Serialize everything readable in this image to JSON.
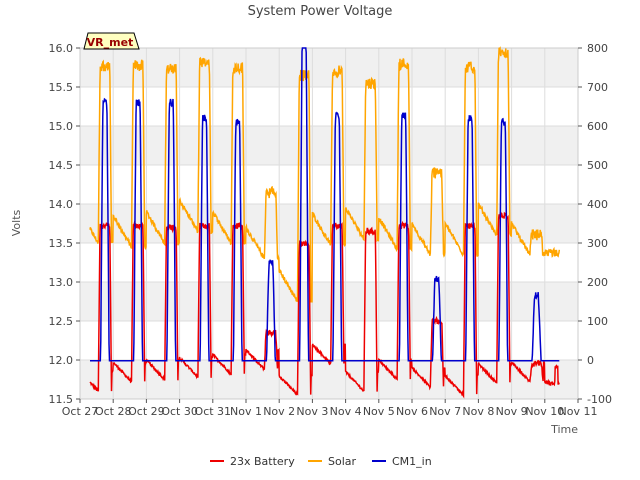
{
  "chart_data": {
    "type": "line",
    "title": "System Power Voltage",
    "xlabel": "Time",
    "ylabel": "Volts",
    "badge": "VR_met",
    "x_ticks": [
      "Oct 27",
      "Oct 28",
      "Oct 29",
      "Oct 30",
      "Oct 31",
      "Nov 1",
      "Nov 2",
      "Nov 3",
      "Nov 4",
      "Nov 5",
      "Nov 6",
      "Nov 7",
      "Nov 8",
      "Nov 9",
      "Nov 10",
      "Nov 11"
    ],
    "xlim": [
      0,
      15
    ],
    "ylim_left": [
      11.5,
      16.0
    ],
    "y_ticks_left": [
      "11.5",
      "12.0",
      "12.5",
      "13.0",
      "13.5",
      "14.0",
      "14.5",
      "15.0",
      "15.5",
      "16.0"
    ],
    "ylim_right": [
      -100,
      800
    ],
    "y_ticks_right": [
      "-100",
      "0",
      "100",
      "200",
      "300",
      "400",
      "500",
      "600",
      "700",
      "800"
    ],
    "colors": {
      "battery": "#ee0000",
      "solar": "#ffa500",
      "cm1": "#0000cc",
      "band": "#f0f0f0"
    },
    "legend": [
      "23x Battery",
      "Solar",
      "CM1_in"
    ],
    "series": [
      {
        "name": "23x Battery",
        "axis": "left",
        "color": "#ee0000",
        "base_start": 11.78,
        "base_end": 11.66,
        "peak_start": 13.72,
        "peak_end": 13.5,
        "x": [
          0.3,
          1.0,
          1.35,
          2.0,
          2.35,
          3.0,
          3.35,
          4.0,
          4.35,
          5.0,
          5.35,
          6.0,
          6.35,
          7.0,
          7.35,
          8.0,
          8.35,
          9.0,
          9.35,
          10.0,
          10.35,
          11.0,
          11.35,
          12.0,
          12.35,
          13.0,
          13.35,
          14.0,
          14.45
        ],
        "y": [
          11.78,
          13.72,
          11.72,
          13.72,
          11.75,
          13.7,
          11.78,
          13.72,
          11.82,
          13.72,
          11.88,
          12.35,
          11.55,
          13.5,
          11.95,
          13.72,
          11.6,
          13.65,
          11.75,
          13.72,
          11.65,
          12.5,
          11.55,
          13.72,
          11.7,
          13.85,
          11.72,
          11.95,
          11.62
        ],
        "summary": [
          {
            "x": 0.3,
            "y": 11.78
          },
          {
            "x": 1.0,
            "y": 13.72
          },
          {
            "x": 6.0,
            "y": 12.35
          },
          {
            "x": 7.0,
            "y": 13.5
          },
          {
            "x": 11.0,
            "y": 12.5
          },
          {
            "x": 13.0,
            "y": 13.85
          },
          {
            "x": 14.45,
            "y": 11.62
          }
        ]
      },
      {
        "name": "Solar",
        "axis": "right",
        "color": "#ffa500",
        "x": [
          0.3,
          0.9,
          1.0,
          1.35,
          1.9,
          2.0,
          2.35,
          2.9,
          3.0,
          3.35,
          3.9,
          4.0,
          4.35,
          4.9,
          5.0,
          5.35,
          5.9,
          6.0,
          6.35,
          6.9,
          7.0,
          7.35,
          7.9,
          8.0,
          8.35,
          8.9,
          9.0,
          9.35,
          9.9,
          10.0,
          10.35,
          10.9,
          11.0,
          11.35,
          11.9,
          12.0,
          12.35,
          12.9,
          13.0,
          13.35,
          13.9,
          14.0,
          14.45
        ],
        "y": [
          300,
          255,
          755,
          390,
          290,
          755,
          370,
          300,
          745,
          370,
          330,
          760,
          370,
          300,
          750,
          310,
          260,
          430,
          290,
          150,
          730,
          360,
          295,
          740,
          370,
          310,
          710,
          340,
          285,
          760,
          330,
          270,
          480,
          290,
          270,
          750,
          360,
          320,
          790,
          360,
          270,
          320,
          265
        ],
        "summary": [
          {
            "x": 0.3,
            "y": 300
          },
          {
            "x": 1.0,
            "y": 755
          },
          {
            "x": 6.0,
            "y": 430
          },
          {
            "x": 7.0,
            "y": 730
          },
          {
            "x": 11.0,
            "y": 480
          },
          {
            "x": 13.0,
            "y": 790
          },
          {
            "x": 14.45,
            "y": 265
          }
        ]
      },
      {
        "name": "CM1_in",
        "axis": "right",
        "color": "#0000cc",
        "base": -2,
        "x": [
          0.3,
          1.0,
          2.0,
          3.0,
          4.0,
          5.0,
          5.75,
          6.0,
          6.5,
          7.0,
          8.0,
          9.0,
          10.0,
          10.65,
          11.0,
          11.5,
          12.0,
          13.0,
          13.5,
          14.0,
          14.45
        ],
        "y": [
          -2,
          660,
          660,
          660,
          620,
          610,
          170,
          250,
          -2,
          830,
          625,
          -2,
          625,
          -2,
          210,
          -2,
          620,
          610,
          -2,
          165,
          -2
        ],
        "summary": [
          {
            "x": 0.3,
            "y": -2
          },
          {
            "x": 1.0,
            "y": 660
          },
          {
            "x": 5.75,
            "y": 170
          },
          {
            "x": 7.0,
            "y": 830
          },
          {
            "x": 11.0,
            "y": 210
          },
          {
            "x": 14.0,
            "y": 165
          },
          {
            "x": 14.45,
            "y": -2
          }
        ]
      }
    ]
  }
}
